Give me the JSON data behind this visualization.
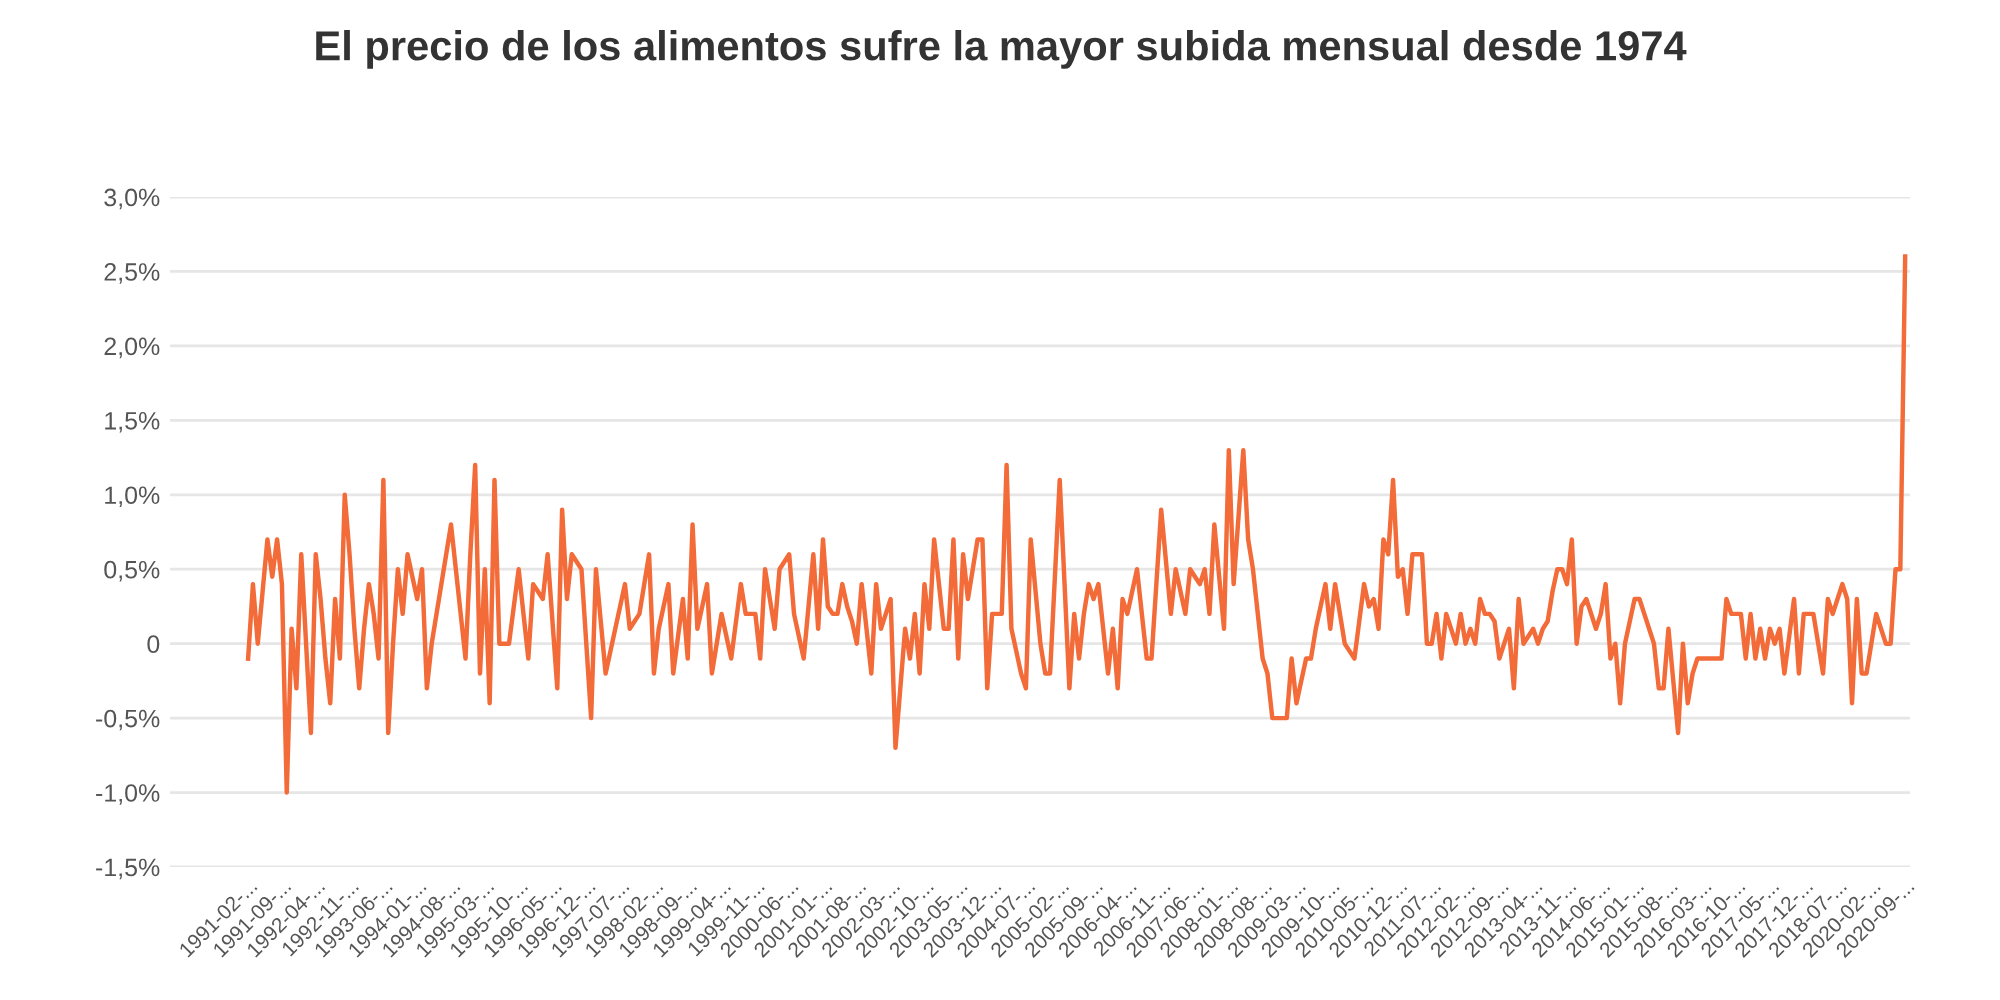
{
  "chart_data": {
    "type": "line",
    "title": "El precio de los alimentos sufre la mayor subida mensual desde 1974",
    "ylim": [
      -1.5,
      3.0
    ],
    "grid": "y",
    "categories": [
      "1991-02-...",
      null,
      null,
      null,
      null,
      null,
      null,
      "1991-09-...",
      null,
      null,
      null,
      null,
      null,
      null,
      "1992-04-...",
      null,
      null,
      null,
      null,
      null,
      null,
      "1992-11-...",
      null,
      null,
      null,
      null,
      null,
      null,
      "1993-06-...",
      null,
      null,
      null,
      null,
      null,
      null,
      "1994-01-...",
      null,
      null,
      null,
      null,
      null,
      null,
      "1994-08-...",
      null,
      null,
      null,
      null,
      null,
      null,
      "1995-03-...",
      null,
      null,
      null,
      null,
      null,
      null,
      "1995-10-...",
      null,
      null,
      null,
      null,
      null,
      null,
      "1996-05-...",
      null,
      null,
      null,
      null,
      null,
      null,
      "1996-12-...",
      null,
      null,
      null,
      null,
      null,
      null,
      "1997-07-...",
      null,
      null,
      null,
      null,
      null,
      null,
      "1998-02-...",
      null,
      null,
      null,
      null,
      null,
      null,
      "1998-09-...",
      null,
      null,
      null,
      null,
      null,
      null,
      "1999-04-...",
      null,
      null,
      null,
      null,
      null,
      null,
      "1999-11-...",
      null,
      null,
      null,
      null,
      null,
      null,
      "2000-06-...",
      null,
      null,
      null,
      null,
      null,
      null,
      "2001-01-...",
      null,
      null,
      null,
      null,
      null,
      null,
      "2001-08-...",
      null,
      null,
      null,
      null,
      null,
      null,
      "2002-03-...",
      null,
      null,
      null,
      null,
      null,
      null,
      "2002-10-...",
      null,
      null,
      null,
      null,
      null,
      null,
      "2003-05-...",
      null,
      null,
      null,
      null,
      null,
      null,
      "2003-12-...",
      null,
      null,
      null,
      null,
      null,
      null,
      "2004-07-...",
      null,
      null,
      null,
      null,
      null,
      null,
      "2005-02-...",
      null,
      null,
      null,
      null,
      null,
      null,
      "2005-09-...",
      null,
      null,
      null,
      null,
      null,
      null,
      "2006-04-...",
      null,
      null,
      null,
      null,
      null,
      null,
      "2006-11-...",
      null,
      null,
      null,
      null,
      null,
      null,
      "2007-06-...",
      null,
      null,
      null,
      null,
      null,
      null,
      "2008-01-...",
      null,
      null,
      null,
      null,
      null,
      null,
      "2008-08-...",
      null,
      null,
      null,
      null,
      null,
      null,
      "2009-03-...",
      null,
      null,
      null,
      null,
      null,
      null,
      "2009-10-...",
      null,
      null,
      null,
      null,
      null,
      null,
      "2010-05-...",
      null,
      null,
      null,
      null,
      null,
      null,
      "2010-12-...",
      null,
      null,
      null,
      null,
      null,
      null,
      "2011-07-...",
      null,
      null,
      null,
      null,
      null,
      null,
      "2012-02-...",
      null,
      null,
      null,
      null,
      null,
      null,
      "2012-09-...",
      null,
      null,
      null,
      null,
      null,
      null,
      "2013-04-...",
      null,
      null,
      null,
      null,
      null,
      null,
      "2013-11-...",
      null,
      null,
      null,
      null,
      null,
      null,
      "2014-06-...",
      null,
      null,
      null,
      null,
      null,
      null,
      "2015-01-...",
      null,
      null,
      null,
      null,
      null,
      null,
      "2015-08-...",
      null,
      null,
      null,
      null,
      null,
      null,
      "2016-03-...",
      null,
      null,
      null,
      null,
      null,
      null,
      "2016-10-...",
      null,
      null,
      null,
      null,
      null,
      null,
      "2017-05-...",
      null,
      null,
      null,
      null,
      null,
      null,
      "2017-12-...",
      null,
      null,
      null,
      null,
      null,
      null,
      "2018-07-...",
      null,
      null,
      null,
      null,
      null,
      null,
      "2020-02-...",
      null,
      null,
      null,
      null,
      null,
      null,
      "2020-09-..."
    ],
    "yticks": [
      {
        "value": -1.5,
        "label": "-1,5%"
      },
      {
        "value": -1.0,
        "label": "-1,0%"
      },
      {
        "value": -0.5,
        "label": "-0,5%"
      },
      0,
      {
        "value": 0.5,
        "label": "0,5%"
      },
      {
        "value": 1.0,
        "label": "1,0%"
      },
      {
        "value": 1.5,
        "label": "1,5%"
      },
      {
        "value": 2.0,
        "label": "2,0%"
      },
      {
        "value": 2.5,
        "label": "2,5%"
      },
      {
        "value": 3.0,
        "label": "3,0%"
      }
    ],
    "series": [
      {
        "color": "#f26b38",
        "values": [
          -0.1,
          0.4,
          0,
          0.35,
          0.7,
          0.45,
          0.7,
          0.4,
          -1.0,
          0.1,
          -0.3,
          0.6,
          0,
          -0.6,
          0.6,
          0.3,
          -0.1,
          -0.4,
          0.3,
          -0.1,
          1.0,
          0.6,
          0.1,
          -0.3,
          0.1,
          0.4,
          0.2,
          -0.1,
          1.1,
          -0.6,
          0,
          0.5,
          0.2,
          0.6,
          0.45,
          0.3,
          0.5,
          -0.3,
          0,
          0.2,
          0.4,
          0.6,
          0.8,
          0.5,
          0.2,
          -0.1,
          0.6,
          1.2,
          -0.2,
          0.5,
          -0.4,
          1.1,
          0,
          0,
          0,
          0.25,
          0.5,
          0.2,
          -0.1,
          0.4,
          0.35,
          0.3,
          0.6,
          0.15,
          -0.3,
          0.9,
          0.3,
          0.6,
          0.55,
          0.5,
          0,
          -0.5,
          0.5,
          0.15,
          -0.2,
          -0.05,
          0.1,
          0.25,
          0.4,
          0.1,
          0.15,
          0.2,
          0.4,
          0.6,
          -0.2,
          0.1,
          0.25,
          0.4,
          -0.2,
          0.05,
          0.3,
          -0.1,
          0.8,
          0.1,
          0.25,
          0.4,
          -0.2,
          0,
          0.2,
          0.05,
          -0.1,
          0.15,
          0.4,
          0.2,
          0.2,
          0.2,
          -0.1,
          0.5,
          0.3,
          0.1,
          0.5,
          0.55,
          0.6,
          0.2,
          0.05,
          -0.1,
          0.25,
          0.6,
          0.1,
          0.7,
          0.25,
          0.2,
          0.2,
          0.4,
          0.25,
          0.15,
          0,
          0.4,
          0.1,
          -0.2,
          0.4,
          0.1,
          0.2,
          0.3,
          -0.7,
          -0.3,
          0.1,
          -0.1,
          0.2,
          -0.2,
          0.4,
          0.1,
          0.7,
          0.4,
          0.1,
          0.1,
          0.7,
          -0.1,
          0.6,
          0.3,
          0.5,
          0.7,
          0.7,
          -0.3,
          0.2,
          0.2,
          0.2,
          1.2,
          0.1,
          -0.05,
          -0.2,
          -0.3,
          0.7,
          0.35,
          0,
          -0.2,
          -0.2,
          0.45,
          1.1,
          0.4,
          -0.3,
          0.2,
          -0.1,
          0.2,
          0.4,
          0.3,
          0.4,
          0.1,
          -0.2,
          0.1,
          -0.3,
          0.3,
          0.2,
          0.35,
          0.5,
          0.2,
          -0.1,
          -0.1,
          0.4,
          0.9,
          0.55,
          0.2,
          0.5,
          0.35,
          0.2,
          0.5,
          0.45,
          0.4,
          0.5,
          0.2,
          0.8,
          0.45,
          0.1,
          1.3,
          0.4,
          0.85,
          1.3,
          0.7,
          0.5,
          0.2,
          -0.1,
          -0.2,
          -0.5,
          -0.5,
          -0.5,
          -0.5,
          -0.1,
          -0.4,
          -0.25,
          -0.1,
          -0.1,
          0.1,
          0.25,
          0.4,
          0.1,
          0.4,
          0.2,
          0,
          -0.05,
          -0.1,
          0.15,
          0.4,
          0.25,
          0.3,
          0.1,
          0.7,
          0.6,
          1.1,
          0.45,
          0.5,
          0.2,
          0.6,
          0.6,
          0.6,
          0,
          0,
          0.2,
          -0.1,
          0.2,
          0.1,
          0,
          0.2,
          0,
          0.1,
          0,
          0.3,
          0.2,
          0.2,
          0.15,
          -0.1,
          0,
          0.1,
          -0.3,
          0.3,
          0,
          0.05,
          0.1,
          0,
          0.1,
          0.15,
          0.35,
          0.5,
          0.5,
          0.4,
          0.7,
          0,
          0.25,
          0.3,
          0.2,
          0.1,
          0.2,
          0.4,
          -0.1,
          0,
          -0.4,
          0,
          0.15,
          0.3,
          0.3,
          0.2,
          0.1,
          0,
          -0.3,
          -0.3,
          0.1,
          -0.25,
          -0.6,
          0,
          -0.4,
          -0.2,
          -0.1,
          -0.1,
          -0.1,
          -0.1,
          -0.1,
          -0.1,
          0.3,
          0.2,
          0.2,
          0.2,
          -0.1,
          0.2,
          -0.1,
          0.1,
          -0.1,
          0.1,
          0,
          0.1,
          -0.2,
          0.05,
          0.3,
          -0.2,
          0.2,
          0.2,
          0.2,
          0,
          -0.2,
          0.3,
          0.2,
          0.3,
          0.4,
          0.3,
          -0.4,
          0.3,
          -0.2,
          -0.2,
          0,
          0.2,
          0.1,
          0,
          0,
          0.5,
          0.5,
          2.6
        ]
      }
    ]
  }
}
